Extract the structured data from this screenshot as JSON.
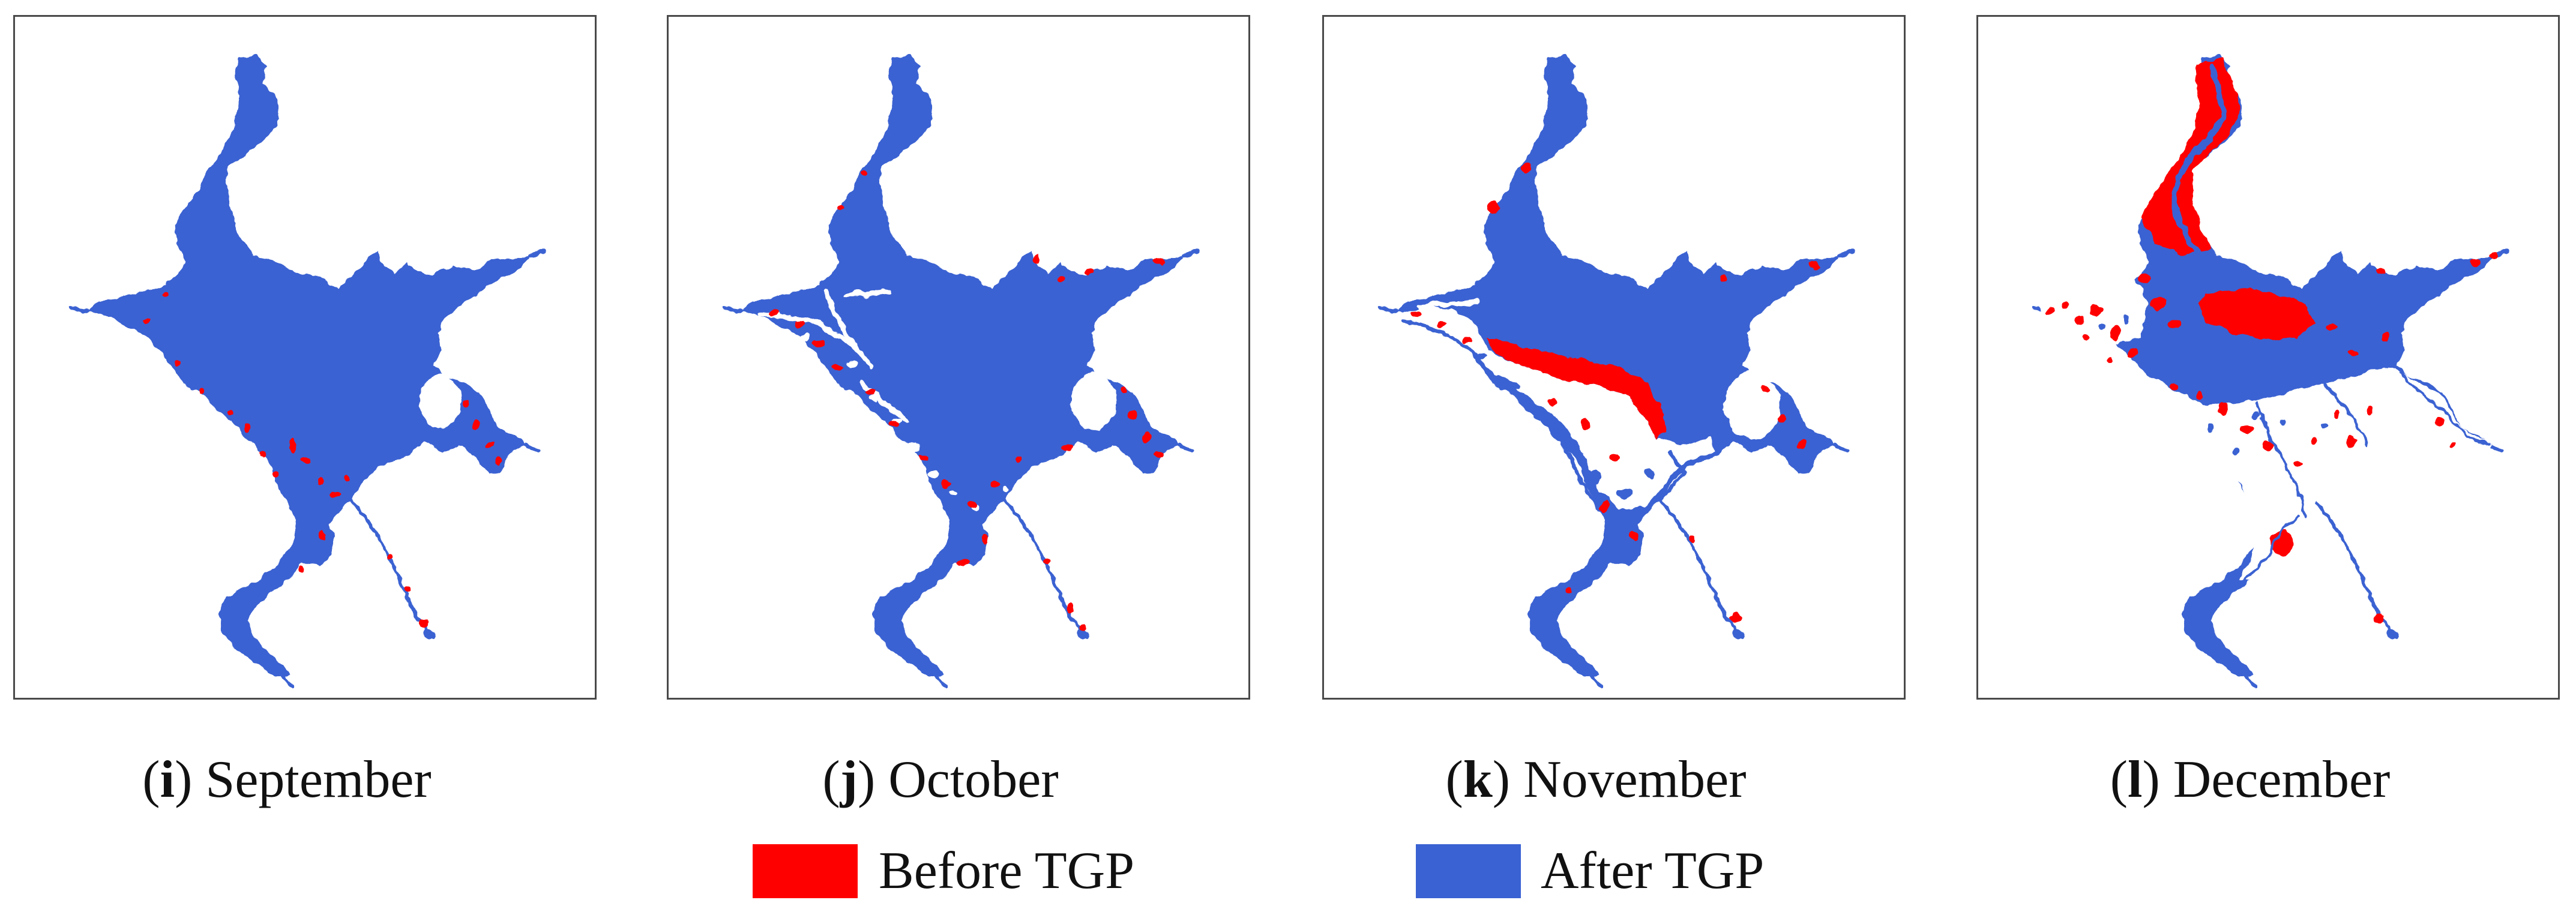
{
  "figure": {
    "panels": [
      {
        "letter": "i",
        "month": "September"
      },
      {
        "letter": "j",
        "month": "October"
      },
      {
        "letter": "k",
        "month": "November"
      },
      {
        "letter": "l",
        "month": "December"
      }
    ],
    "legend": [
      {
        "label": "Before TGP",
        "color": "#FF0000"
      },
      {
        "label": "After TGP",
        "color": "#3A62D2"
      }
    ]
  }
}
